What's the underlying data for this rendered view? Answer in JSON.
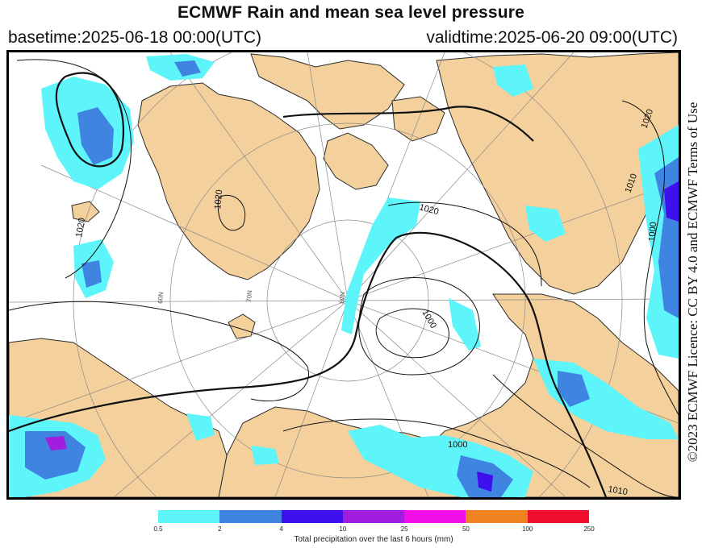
{
  "header": {
    "title": "ECMWF Rain and mean sea level pressure",
    "basetime": "basetime:2025-06-18 00:00(UTC)",
    "validtime": "validtime:2025-06-20 09:00(UTC)"
  },
  "license_text": "©2023 ECMWF Licence: CC BY 4.0 and ECMWF Terms of Use",
  "map": {
    "isobar_labels": [
      "1020",
      "1020",
      "1020",
      "1000",
      "1000",
      "1010",
      "1020",
      "1000",
      "1010"
    ],
    "latitude_labels": [
      "80N",
      "70N",
      "60N"
    ],
    "colors": {
      "land": "#f4d19c",
      "sea": "#ffffff",
      "coast": "#2b2b2b",
      "isobar": "#111111"
    }
  },
  "legend": {
    "title": "Total precipitation over the last 6 hours (mm)",
    "ticks": [
      "0.5",
      "2",
      "4",
      "10",
      "25",
      "50",
      "100",
      "250"
    ],
    "colors": [
      "#5ef5fa",
      "#3f84e0",
      "#3f10ee",
      "#a21ddd",
      "#f10ee7",
      "#f08321",
      "#f00e2e"
    ]
  }
}
